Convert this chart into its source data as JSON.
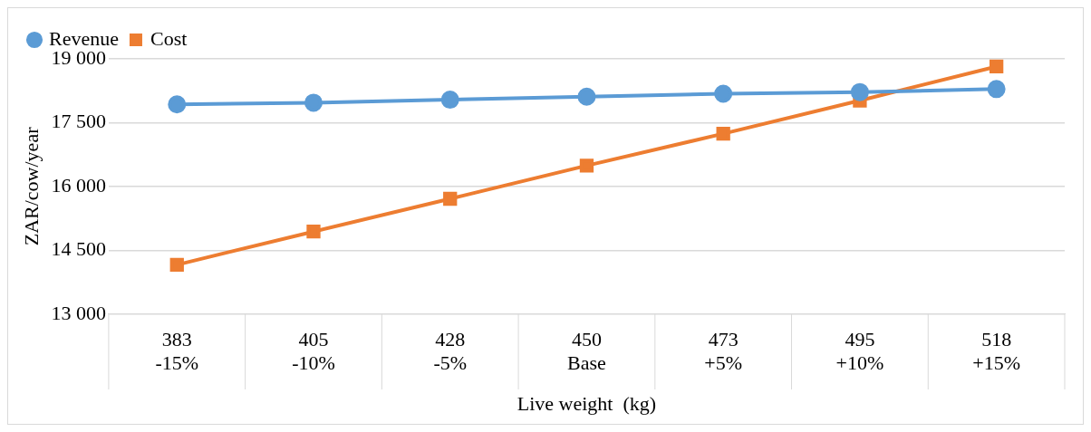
{
  "chart_data": {
    "type": "line",
    "xlabel": "Live weight  (kg)",
    "ylabel": "ZAR/cow/year",
    "categories": [
      "383\n-15%",
      "405\n-10%",
      "428\n-5%",
      "450\nBase",
      "473\n+5%",
      "495\n+10%",
      "518\n+15%"
    ],
    "series": [
      {
        "name": "Revenue",
        "color": "#5b9bd5",
        "marker": "circle",
        "values": [
          17930,
          17970,
          18040,
          18110,
          18180,
          18220,
          18290
        ]
      },
      {
        "name": "Cost",
        "color": "#ed7d31",
        "marker": "square",
        "values": [
          14160,
          14940,
          15710,
          16490,
          17240,
          18020,
          18820
        ]
      }
    ],
    "ylim": [
      13000,
      19000
    ],
    "yticks": [
      {
        "value": 13000,
        "label": "13 000"
      },
      {
        "value": 14500,
        "label": "14 500"
      },
      {
        "value": 16000,
        "label": "16 000"
      },
      {
        "value": 17500,
        "label": "17 500"
      },
      {
        "value": 19000,
        "label": "19 000"
      }
    ],
    "grid": "y",
    "legend": "top left",
    "line_style": "solid"
  }
}
